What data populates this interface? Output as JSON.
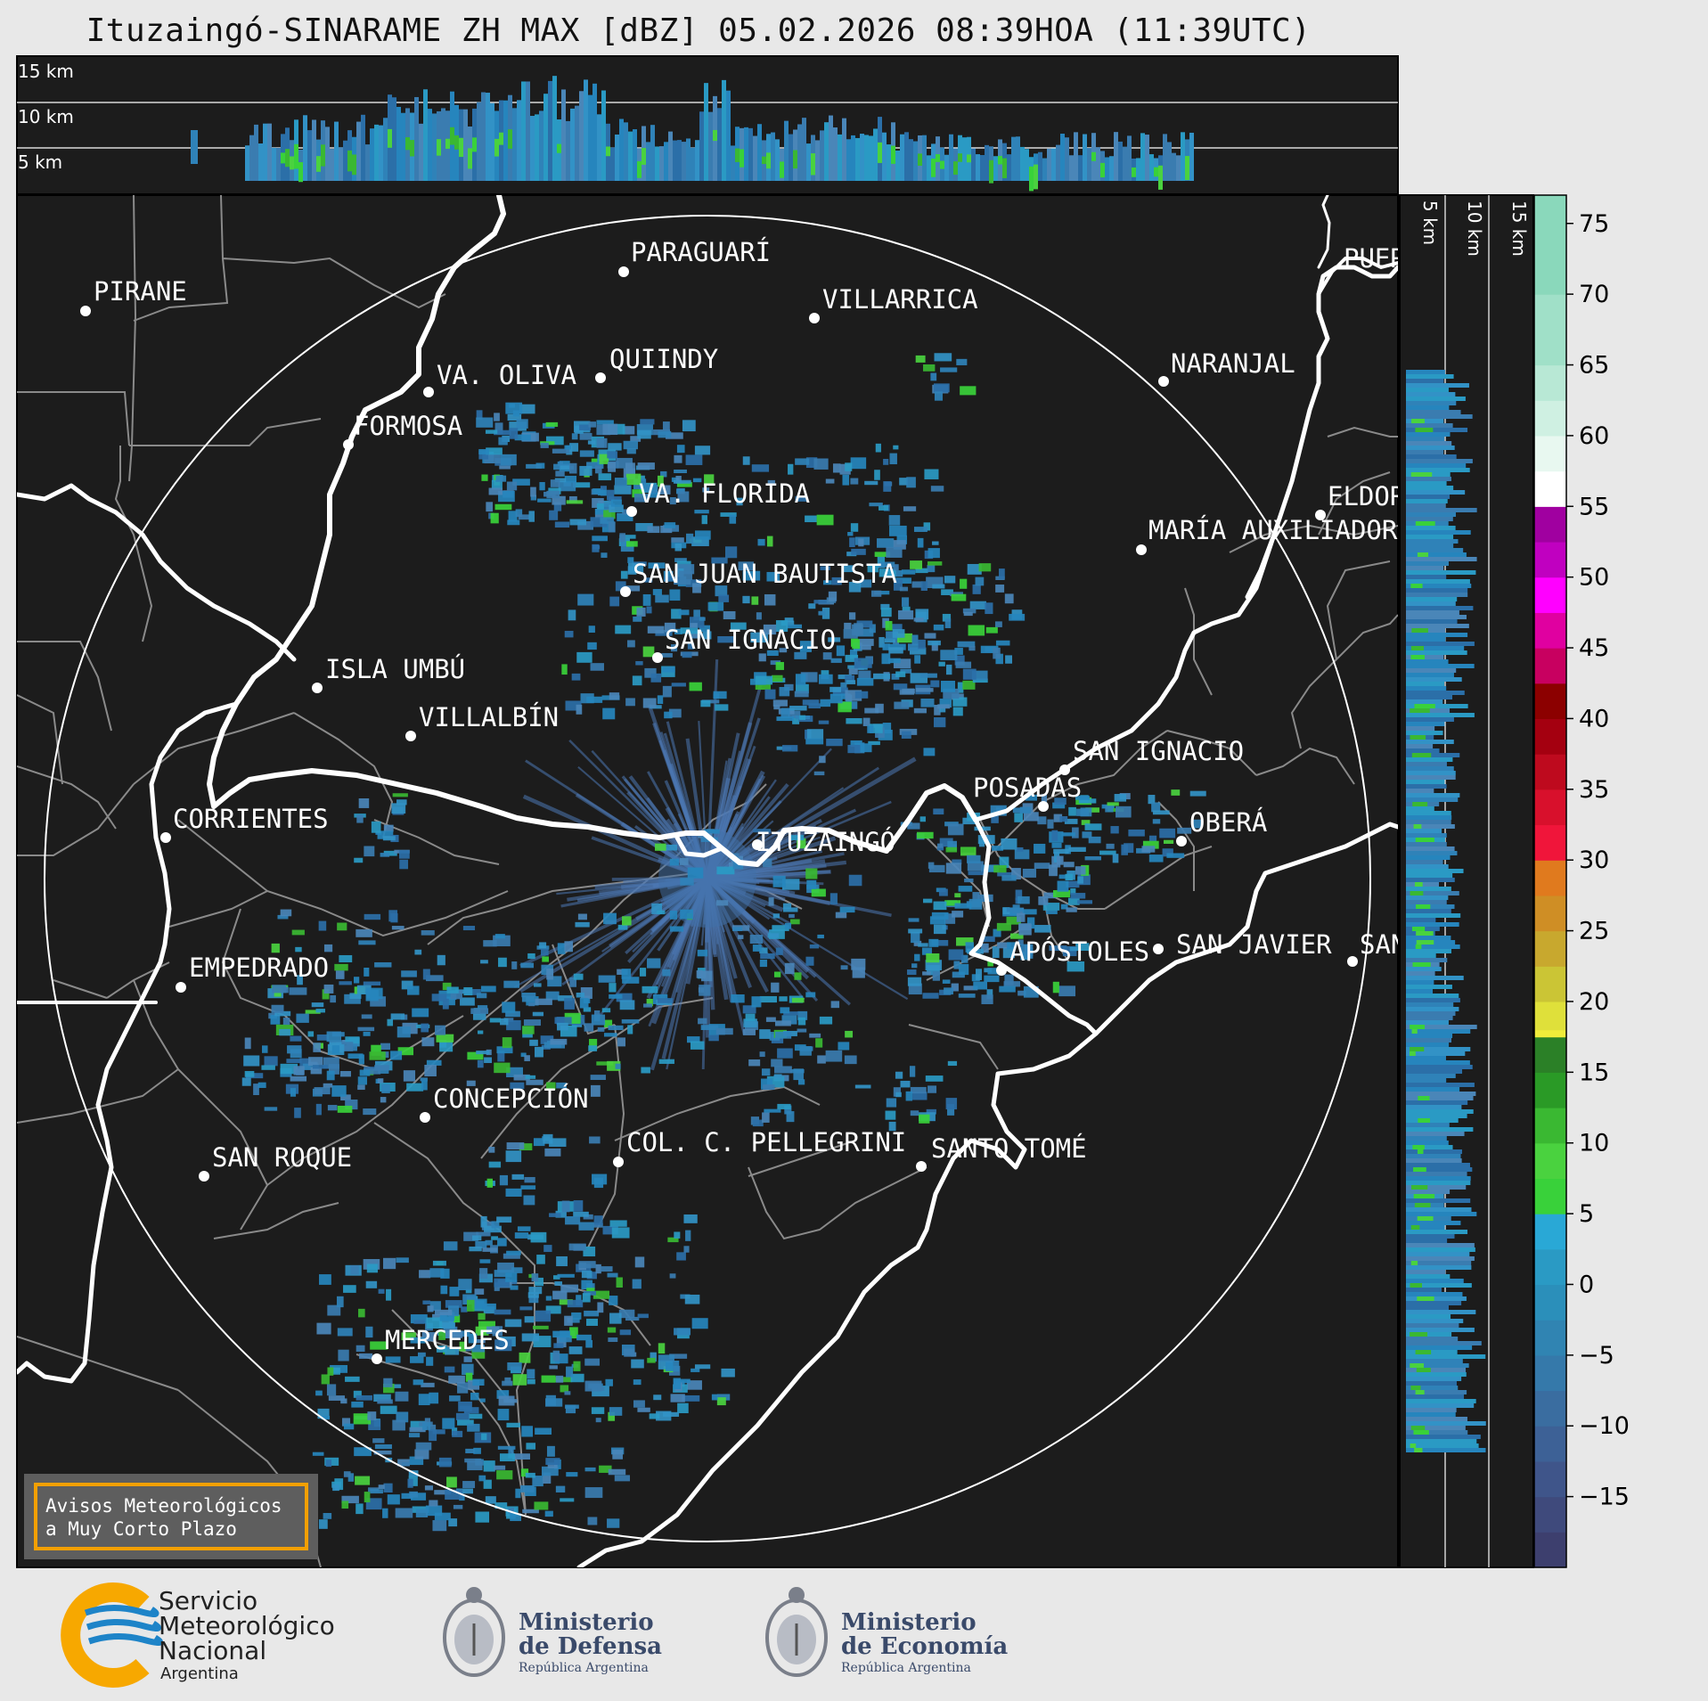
{
  "title": "Ituzaingó-SINARAME ZH MAX [dBZ] 05.02.2026 08:39HOA (11:39UTC)",
  "top_panel": {
    "height_labels": [
      "15 km",
      "10 km",
      "5 km"
    ]
  },
  "side_panel": {
    "height_labels": [
      "5 km",
      "10 km",
      "15 km"
    ]
  },
  "colorbar": {
    "unit": "dBZ",
    "ticks": [
      "75",
      "70",
      "65",
      "60",
      "55",
      "50",
      "45",
      "40",
      "35",
      "30",
      "25",
      "20",
      "15",
      "10",
      "5",
      "0",
      "−5",
      "−10",
      "−15"
    ],
    "range": [
      -20,
      77
    ],
    "colors": [
      "#3d3f6e",
      "#3f4a7c",
      "#3f558a",
      "#3d6196",
      "#3a6da0",
      "#3579aa",
      "#3084b2",
      "#2b8fba",
      "#2a9ac4",
      "#29a8d6",
      "#39d13a",
      "#4ad23f",
      "#3ab832",
      "#2a9a26",
      "#2b8027",
      "#f0ec3a",
      "#dfe03a",
      "#cbc535",
      "#c8a82e",
      "#cf8e25",
      "#e07a1e",
      "#f0153a",
      "#d8102c",
      "#be0a1e",
      "#a40010",
      "#8c0000",
      "#c80060",
      "#e000a0",
      "#ff00ff",
      "#c000c0",
      "#a000a0",
      "#ffffff",
      "#e8f8f0",
      "#cff0e2",
      "#b8e8d5",
      "#a0e0c8",
      "#8ad8bb"
    ],
    "color_bounds": [
      -20,
      -17.5,
      -15,
      -12.5,
      -10,
      -7.5,
      -5,
      -2.5,
      0,
      2.5,
      5,
      7.5,
      10,
      12.5,
      15,
      17.5,
      18,
      20,
      22.5,
      25,
      27.5,
      30,
      32.5,
      35,
      37.5,
      40,
      42.5,
      45,
      47.5,
      50,
      52.5,
      55,
      57.5,
      60,
      62.5,
      65,
      70,
      77
    ]
  },
  "cities": [
    {
      "name": "PIRANE"
    },
    {
      "name": "PARAGUARÍ"
    },
    {
      "name": "VILLARRICA"
    },
    {
      "name": "QUIINDY"
    },
    {
      "name": "VA. OLIVA"
    },
    {
      "name": "FORMOSA"
    },
    {
      "name": "NARANJAL"
    },
    {
      "name": "VA. FLORIDA"
    },
    {
      "name": "ELDOR"
    },
    {
      "name": "MARÍA AUXILIADORA"
    },
    {
      "name": "SAN JUAN BAUTISTA"
    },
    {
      "name": "SAN IGNACIO"
    },
    {
      "name": "ISLA UMBÚ"
    },
    {
      "name": "VILLALBÍN"
    },
    {
      "name": "SAN IGNACIO"
    },
    {
      "name": "POSADAS"
    },
    {
      "name": "CORRIENTES"
    },
    {
      "name": "ITUZAINGÓ"
    },
    {
      "name": "OBERÁ"
    },
    {
      "name": "EMPEDRADO"
    },
    {
      "name": "APÓSTOLES"
    },
    {
      "name": "SAN JAVIER"
    },
    {
      "name": "SAN"
    },
    {
      "name": "CONCEPCIÓN"
    },
    {
      "name": "COL. C. PELLEGRINI"
    },
    {
      "name": "SANTO TOMÉ"
    },
    {
      "name": "SAN ROQUE"
    },
    {
      "name": "MERCEDES"
    },
    {
      "name": "PUER"
    }
  ],
  "warning_box": {
    "line1": "Avisos Meteorológicos",
    "line2": "a Muy Corto Plazo",
    "border_color": "#f4a000"
  },
  "logos": {
    "smn": {
      "line1": "Servicio",
      "line2": "Meteorológico",
      "line3": "Nacional",
      "line4": "Argentina"
    },
    "defensa": {
      "line1": "Ministerio",
      "line2": "de Defensa",
      "line3": "República Argentina"
    },
    "economia": {
      "line1": "Ministerio",
      "line2": "de Economía",
      "line3": "República Argentina"
    }
  },
  "colors": {
    "map_background": "#1c1c1c",
    "river": "#ffffff",
    "border": "#8a8a8a",
    "smn_blue": "#1e84c8",
    "smn_yellow": "#f7a800",
    "ministry_text": "#3a4a6a"
  }
}
